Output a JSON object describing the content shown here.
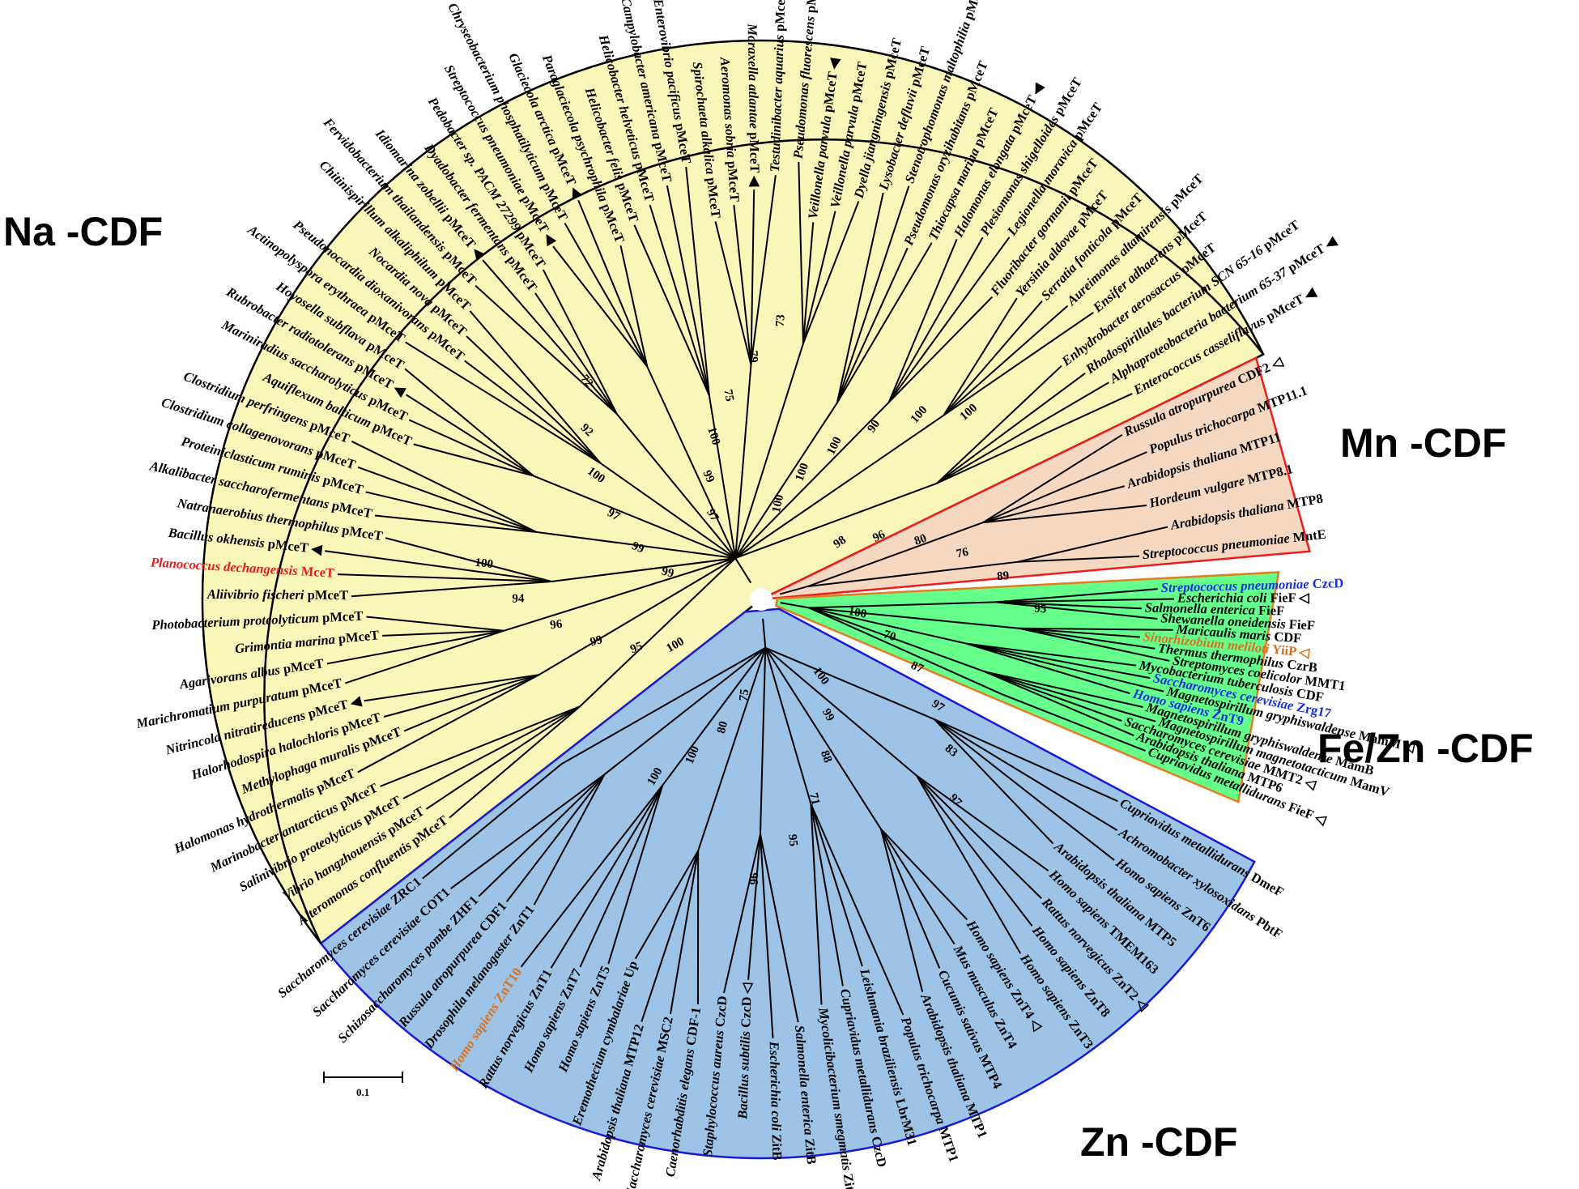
{
  "clades": [
    {
      "key": "na",
      "label": "Na -CDF",
      "fill": "#f9f6b9",
      "stroke": "#000000",
      "tip": "sp pMceT"
    },
    {
      "key": "mn",
      "label": "Mn -CDF",
      "fill": "#f4d8c2",
      "stroke": "#ee1c1c",
      "tip": ""
    },
    {
      "key": "fezn",
      "label": "Fe/Zn -CDF",
      "fill": "#66ff8c",
      "stroke": "#e57c1f",
      "tip": ""
    },
    {
      "key": "zn",
      "label": "Zn -CDF",
      "fill": "#9dc3e6",
      "stroke": "#1a1ad6",
      "tip": ""
    }
  ],
  "scale_bar": {
    "label": "0.1"
  },
  "colors": {
    "red": "#e51d1d",
    "blue": "#1430e0",
    "orange": "#d9701c",
    "black": "#000000"
  },
  "leaves": [
    {
      "sp": "Alteromonas confluentis",
      "g": "pMceT",
      "clade": "na"
    },
    {
      "sp": "Vibrio hangzhouensis",
      "g": "pMceT",
      "clade": "na"
    },
    {
      "sp": "Salinivibrio proteolyticus",
      "g": "pMceT",
      "clade": "na"
    },
    {
      "sp": "Marinobacter antarcticus",
      "g": "pMceT",
      "clade": "na"
    },
    {
      "sp": "Halomonas hydrothermalis",
      "g": "pMceT",
      "clade": "na"
    },
    {
      "sp": "Methylophaga muralis",
      "g": "pMceT",
      "clade": "na"
    },
    {
      "sp": "Halorhodospira halochloris",
      "g": "pMceT",
      "clade": "na"
    },
    {
      "sp": "Nitrincola nitratireducens",
      "g": "pMceT",
      "clade": "na",
      "mark": "filled",
      "markBefore": true
    },
    {
      "sp": "Marichromatium purpuratum",
      "g": "pMceT",
      "clade": "na"
    },
    {
      "sp": "Agarivorans albus",
      "g": "pMceT",
      "clade": "na"
    },
    {
      "sp": "Grimontia marina",
      "g": "pMceT",
      "clade": "na"
    },
    {
      "sp": "Photobacterium proteolyticum",
      "g": "pMceT",
      "clade": "na"
    },
    {
      "sp": "Aliivibrio fischeri",
      "g": "pMceT",
      "clade": "na"
    },
    {
      "sp": "Planococcus dechangensis",
      "g": "MceT",
      "clade": "na",
      "color": "red"
    },
    {
      "sp": "Bacillus okhensis",
      "g": "pMceT",
      "clade": "na",
      "mark": "filled",
      "markBefore": true
    },
    {
      "sp": "Natranaerobius thermophilus",
      "g": "pMceT",
      "clade": "na"
    },
    {
      "sp": "Alkalibacter saccharofermentans",
      "g": "pMceT",
      "clade": "na"
    },
    {
      "sp": "Proteiniclasticum ruminis",
      "g": "pMceT",
      "clade": "na"
    },
    {
      "sp": "Clostridium collagenovorans",
      "g": "pMceT",
      "clade": "na"
    },
    {
      "sp": "Clostridium perfringens",
      "g": "pMceT",
      "clade": "na"
    },
    {
      "sp": "Aquiflexum balticum",
      "g": "pMceT",
      "clade": "na"
    },
    {
      "sp": "Mariniradius saccharolyticus",
      "g": "pMceT",
      "clade": "na"
    },
    {
      "sp": "Rubrobacter radiotolerans",
      "g": "pMceT",
      "clade": "na",
      "mark": "filled",
      "markBefore": true
    },
    {
      "sp": "Hoyosella subflava",
      "g": "pMceT",
      "clade": "na"
    },
    {
      "sp": "Actinopolyspora erythraea",
      "g": "pMceT",
      "clade": "na"
    },
    {
      "sp": "Pseudonocardia dioxanivorans",
      "g": "pMceT",
      "clade": "na"
    },
    {
      "sp": "Nocardia nova",
      "g": "pMceT",
      "clade": "na"
    },
    {
      "sp": "Chitinispirillum alkaliphilum",
      "g": "pMceT",
      "clade": "na"
    },
    {
      "sp": "Fervidobacterium thailandensis",
      "g": "pMceT",
      "clade": "na"
    },
    {
      "sp": "Idiomarina zobellii",
      "g": "pMceT",
      "clade": "na",
      "mark": "filled",
      "markBefore": true
    },
    {
      "sp": "Dyadobacter fermentans",
      "g": "pMceT",
      "clade": "na"
    },
    {
      "sp": "Pedobacter sp. PACM 27299",
      "g": "pMceT",
      "clade": "na"
    },
    {
      "sp": "Streptococcus pneumoniae",
      "g": "pMceT",
      "clade": "na",
      "mark": "filled",
      "markBefore": true
    },
    {
      "sp": "Chryseobacterium phosphatilyticum",
      "g": "pMceT",
      "clade": "na"
    },
    {
      "sp": "Glaciecola arctica",
      "g": "pMceT",
      "clade": "na",
      "mark": "filled",
      "markBefore": true
    },
    {
      "sp": "Paraglaciecola psychrophila",
      "g": "pMceT",
      "clade": "na"
    },
    {
      "sp": "Helicobacter felis",
      "g": "pMceT",
      "clade": "na"
    },
    {
      "sp": "Helicobacter helveticus",
      "g": "pMceT",
      "clade": "na"
    },
    {
      "sp": "Campylobacter americana",
      "g": "pMceT",
      "clade": "na"
    },
    {
      "sp": "Enterovibrio pacificus",
      "g": "pMceT",
      "clade": "na"
    },
    {
      "sp": "Spirochaeta alkalica",
      "g": "pMceT",
      "clade": "na"
    },
    {
      "sp": "Aeromonas sobria",
      "g": "pMceT",
      "clade": "na"
    },
    {
      "sp": "Moraxella atlantae",
      "g": "pMceT",
      "clade": "na",
      "mark": "filled"
    },
    {
      "sp": "Testudinibacter aquarius",
      "g": "pMceT",
      "clade": "na"
    },
    {
      "sp": "Pseudomonas fluorescens",
      "g": "pMceT",
      "clade": "na"
    },
    {
      "sp": "Veillonella parvula",
      "g": "pMceT",
      "clade": "na",
      "mark": "filled"
    },
    {
      "sp": "Veillonella parvula",
      "g": "pMceT",
      "clade": "na"
    },
    {
      "sp": "Dyella jiangningensis",
      "g": "pMceT",
      "clade": "na"
    },
    {
      "sp": "Lysobacter defluvii",
      "g": "pMceT",
      "clade": "na"
    },
    {
      "sp": "Stenotrophomonas maltophilia",
      "g": "pMceT",
      "clade": "na"
    },
    {
      "sp": "Pseudomonas oryzihabitans",
      "g": "pMceT",
      "clade": "na"
    },
    {
      "sp": "Thiocapsa marina",
      "g": "pMceT",
      "clade": "na"
    },
    {
      "sp": "Halomonas elongata",
      "g": "pMceT",
      "clade": "na",
      "mark": "filled"
    },
    {
      "sp": "Plesiomonas shigelloides",
      "g": "pMceT",
      "clade": "na"
    },
    {
      "sp": "Legionella moravica",
      "g": "pMceT",
      "clade": "na"
    },
    {
      "sp": "Fluoribacter gormanii",
      "g": "pMceT",
      "clade": "na"
    },
    {
      "sp": "Yersinia aldovae",
      "g": "pMceT",
      "clade": "na"
    },
    {
      "sp": "Serratia fonticola",
      "g": "pMceT",
      "clade": "na"
    },
    {
      "sp": "Aureimonas altamirensis",
      "g": "pMceT",
      "clade": "na"
    },
    {
      "sp": "Ensifer adhaerens",
      "g": "pMceT",
      "clade": "na"
    },
    {
      "sp": "Enhydrobacter aerosaccus",
      "g": "pMceT",
      "clade": "na"
    },
    {
      "sp": "Rhodospirillales bacterium SCN 65-16",
      "g": "pMceT",
      "clade": "na"
    },
    {
      "sp": "Alphaproteobacteria bacterium 65-37",
      "g": "pMceT",
      "clade": "na",
      "mark": "filled"
    },
    {
      "sp": "Enterococcus casseliflavus",
      "g": "pMceT",
      "clade": "na",
      "mark": "filled"
    },
    {
      "sp": "Russula atropurpurea",
      "g": "CDF2",
      "clade": "mn",
      "mark": "open"
    },
    {
      "sp": "Populus trichocarpa",
      "g": "MTP11.1",
      "clade": "mn"
    },
    {
      "sp": "Arabidopsis thaliana",
      "g": "MTP11",
      "clade": "mn"
    },
    {
      "sp": "Hordeum vulgare",
      "g": "MTP8.1",
      "clade": "mn"
    },
    {
      "sp": "Arabidopsis thaliana",
      "g": "MTP8",
      "clade": "mn"
    },
    {
      "sp": "Streptococcus pneumoniae",
      "g": "MntE",
      "clade": "mn"
    },
    {
      "sp": "Streptococcus pneumoniae",
      "g": "CzcD",
      "clade": "fezn",
      "color": "blue"
    },
    {
      "sp": "Escherichia coli",
      "g": "FieF",
      "clade": "fezn",
      "mark": "open"
    },
    {
      "sp": "Salmonella enterica",
      "g": "FieF",
      "clade": "fezn"
    },
    {
      "sp": "Shewanella oneidensis",
      "g": "FieF",
      "clade": "fezn"
    },
    {
      "sp": "Maricaulis maris",
      "g": "CDF",
      "clade": "fezn"
    },
    {
      "sp": "Sinorhizobium meliloti",
      "g": "YiiP",
      "clade": "fezn",
      "color": "orange",
      "mark": "open"
    },
    {
      "sp": "Thermus thermophilus",
      "g": "CzrB",
      "clade": "fezn"
    },
    {
      "sp": "Streptomyces coelicolor",
      "g": "MMT1",
      "clade": "fezn"
    },
    {
      "sp": "Mycobacterium tuberculosis",
      "g": "CDF",
      "clade": "fezn"
    },
    {
      "sp": "Saccharomyces cerevisiae",
      "g": "Zrg17",
      "clade": "fezn",
      "color": "blue"
    },
    {
      "sp": "Magnetospirillum gryphiswaldense",
      "g": "MamM",
      "clade": "fezn",
      "mark": "open"
    },
    {
      "sp": "Homo sapiens",
      "g": "ZnT9",
      "clade": "fezn",
      "color": "blue"
    },
    {
      "sp": "Magnetospirillum gryphiswaldense",
      "g": "MamB",
      "clade": "fezn"
    },
    {
      "sp": "Magnetospirillum magnetotacticum",
      "g": "MamV",
      "clade": "fezn"
    },
    {
      "sp": "Saccharomyces cerevisiae",
      "g": "MMT2",
      "clade": "fezn",
      "mark": "open"
    },
    {
      "sp": "Arabidopsis thaliana",
      "g": "MTP6",
      "clade": "fezn"
    },
    {
      "sp": "Cupriavidus metallidurans",
      "g": "FieF",
      "clade": "fezn",
      "mark": "open"
    },
    {
      "sp": "Cupriavidus metallidurans",
      "g": "DmeF",
      "clade": "zn"
    },
    {
      "sp": "Achromobacter xylosoxidans",
      "g": "PbtF",
      "clade": "zn"
    },
    {
      "sp": "Homo sapiens",
      "g": "ZnT6",
      "clade": "zn"
    },
    {
      "sp": "Arabidopsis thaliana",
      "g": "MTP5",
      "clade": "zn"
    },
    {
      "sp": "Homo sapiens",
      "g": "TMEM163",
      "clade": "zn"
    },
    {
      "sp": "Rattus norvegicus",
      "g": "ZnT2",
      "clade": "zn",
      "mark": "open"
    },
    {
      "sp": "Homo sapiens",
      "g": "ZnT8",
      "clade": "zn"
    },
    {
      "sp": "Homo sapiens",
      "g": "ZnT3",
      "clade": "zn"
    },
    {
      "sp": "Homo sapiens",
      "g": "ZnT4",
      "clade": "zn",
      "mark": "open"
    },
    {
      "sp": "Mus musculus",
      "g": "ZnT4",
      "clade": "zn"
    },
    {
      "sp": "Cucumis sativus",
      "g": "MTP4",
      "clade": "zn"
    },
    {
      "sp": "Arabidopsis thaliana",
      "g": "MTP1",
      "clade": "zn"
    },
    {
      "sp": "Populus trichocarpa",
      "g": "MTP1",
      "clade": "zn"
    },
    {
      "sp": "Leishmania braziliensis",
      "g": "LbrM31",
      "clade": "zn"
    },
    {
      "sp": "Cupriavidus metallidurans",
      "g": "CzcD",
      "clade": "zn"
    },
    {
      "sp": "Mycolicibacterium smegmatis",
      "g": "ZitA",
      "clade": "zn",
      "mark": "open"
    },
    {
      "sp": "Salmonella enterica",
      "g": "ZitB",
      "clade": "zn"
    },
    {
      "sp": "Escherichia coli",
      "g": "ZitB",
      "clade": "zn"
    },
    {
      "sp": "Bacillus subtilis",
      "g": "CzcD",
      "clade": "zn",
      "mark": "open"
    },
    {
      "sp": "Staphylococcus aureus",
      "g": "CzcD",
      "clade": "zn"
    },
    {
      "sp": "Caenorhabditis elegans",
      "g": "CDF-1",
      "clade": "zn"
    },
    {
      "sp": "Saccharomyces cerevisiae",
      "g": "MSC2",
      "clade": "zn"
    },
    {
      "sp": "Arabidopsis thaliana",
      "g": "MTP12",
      "clade": "zn"
    },
    {
      "sp": "Eremothecium cymbalariae",
      "g": "Up",
      "clade": "zn"
    },
    {
      "sp": "Homo sapiens",
      "g": "ZnT5",
      "clade": "zn"
    },
    {
      "sp": "Homo sapiens",
      "g": "ZnT7",
      "clade": "zn"
    },
    {
      "sp": "Rattus norvegicus",
      "g": "ZnT1",
      "clade": "zn"
    },
    {
      "sp": "Homo sapiens",
      "g": "ZnT10",
      "clade": "zn",
      "color": "orange"
    },
    {
      "sp": "Drosophila melanogaster",
      "g": "ZnT1",
      "clade": "zn"
    },
    {
      "sp": "Russula atropurpurea",
      "g": "CDF1",
      "clade": "zn"
    },
    {
      "sp": "Schizosaccharomyces pombe",
      "g": "ZHF1",
      "clade": "zn"
    },
    {
      "sp": "Saccharomyces cerevisiae",
      "g": "COT1",
      "clade": "zn"
    },
    {
      "sp": "Saccharomyces cerevisiae",
      "g": "ZRC1",
      "clade": "zn"
    }
  ],
  "bootstrap": [
    "100",
    "95",
    "99",
    "96",
    "94",
    "100",
    "99",
    "99",
    "97",
    "100",
    "92",
    "72",
    "97",
    "99",
    "100",
    "75",
    "79",
    "73",
    "100",
    "100",
    "100",
    "90",
    "100",
    "100",
    "98",
    "96",
    "80",
    "76",
    "89",
    "95",
    "100",
    "70",
    "87",
    "97",
    "83",
    "97",
    "100",
    "99",
    "88",
    "71",
    "95",
    "96",
    "75",
    "80",
    "100",
    "100"
  ]
}
